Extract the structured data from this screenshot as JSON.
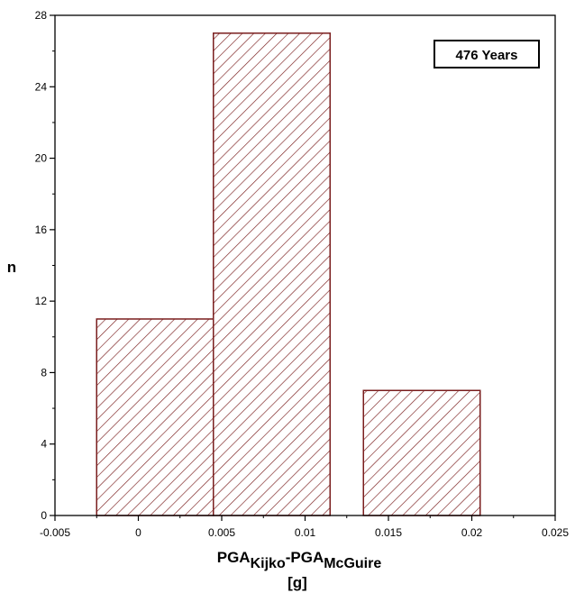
{
  "chart_data": {
    "type": "bar",
    "bins": [
      {
        "x_start": -0.0025,
        "x_end": 0.0045,
        "value": 11
      },
      {
        "x_start": 0.0045,
        "x_end": 0.0115,
        "value": 27
      },
      {
        "x_start": 0.0135,
        "x_end": 0.0205,
        "value": 7
      }
    ],
    "xlim": [
      -0.005,
      0.025
    ],
    "ylim": [
      0,
      28
    ],
    "x_ticks": [
      -0.005,
      0,
      0.005,
      0.01,
      0.015,
      0.02,
      0.025
    ],
    "x_tick_labels": [
      "-0.005",
      "0",
      "0.005",
      "0.01",
      "0.015",
      "0.02",
      "0.025"
    ],
    "y_ticks": [
      0,
      4,
      8,
      12,
      16,
      20,
      24,
      28
    ],
    "y_tick_labels": [
      "0",
      "4",
      "8",
      "12",
      "16",
      "20",
      "24",
      "28"
    ],
    "ylabel": "n",
    "xlabel": {
      "part1": "PGA",
      "sub1": "Kijko",
      "part2": "-PGA",
      "sub2": "McGuire",
      "unit": "[g]"
    },
    "annotation": "476 Years",
    "grid": false,
    "bar_fill": "hatched",
    "bar_color": "#7a1e1e"
  }
}
